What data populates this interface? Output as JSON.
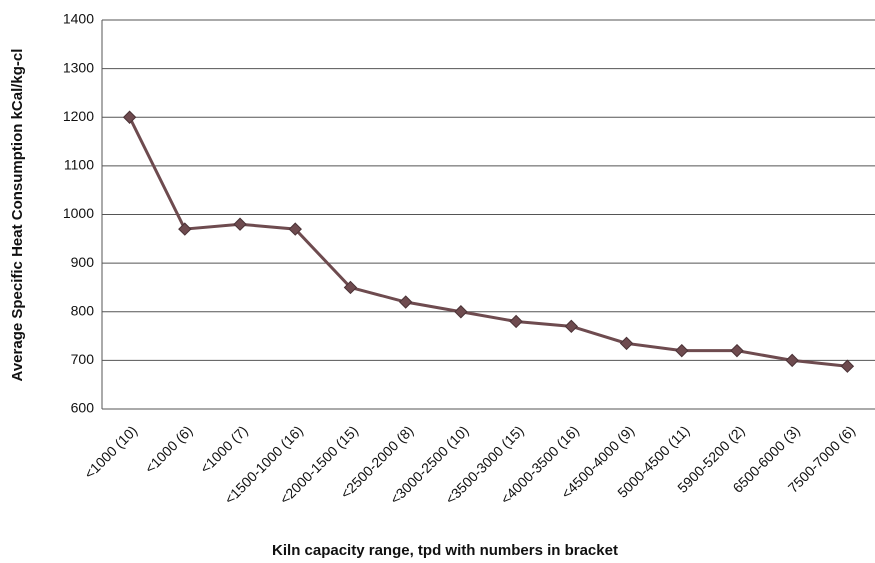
{
  "chart_data": {
    "type": "line",
    "x_label": "Kiln capacity range, tpd with numbers in bracket",
    "y_label": "Average Specific Heat Consumption kCal/kg-cl",
    "categories": [
      "<1000 (10)",
      "<1000 (6)",
      "<1000 (7)",
      "<1500-1000 (16)",
      "<2000-1500 (15)",
      "<2500-2000 (8)",
      "<3000-2500 (10)",
      "<3500-3000 (15)",
      "<4000-3500 (16)",
      "<4500-4000 (9)",
      "5000-4500 (11)",
      "5900-5200 (2)",
      "6500-6000 (3)",
      "7500-7000 (6)"
    ],
    "values": [
      1200,
      970,
      980,
      970,
      850,
      820,
      800,
      780,
      770,
      735,
      720,
      720,
      700,
      688
    ],
    "color": "#6e4b4f",
    "ylim": [
      600,
      1400
    ],
    "yticks": [
      600,
      700,
      800,
      900,
      1000,
      1100,
      1200,
      1300,
      1400
    ],
    "grid": true
  }
}
